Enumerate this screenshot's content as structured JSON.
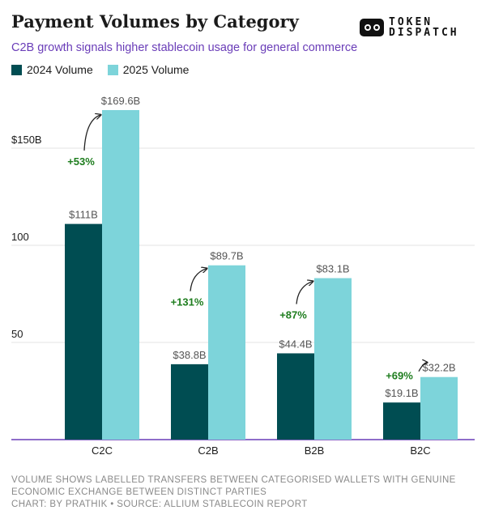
{
  "header": {
    "title": "Payment Volumes by Category",
    "subtitle": "C2B growth signals higher stablecoin usage for general commerce"
  },
  "brand": {
    "line1": "TOKEN",
    "line2": "DISPATCH"
  },
  "legend": [
    {
      "label": "2024 Volume",
      "color": "#004d52"
    },
    {
      "label": "2025 Volume",
      "color": "#7dd4da"
    }
  ],
  "chart_data": {
    "type": "bar",
    "categories": [
      "C2C",
      "C2B",
      "B2B",
      "B2C"
    ],
    "series": [
      {
        "name": "2024 Volume",
        "color": "#004d52",
        "values": [
          111,
          38.8,
          44.4,
          19.1
        ],
        "labels": [
          "$111B",
          "$38.8B",
          "$44.4B",
          "$19.1B"
        ]
      },
      {
        "name": "2025 Volume",
        "color": "#7dd4da",
        "values": [
          169.6,
          89.7,
          83.1,
          32.2
        ],
        "labels": [
          "$169.6B",
          "$89.7B",
          "$83.1B",
          "$32.2B"
        ]
      }
    ],
    "growth": [
      "+53%",
      "+131%",
      "+87%",
      "+69%"
    ],
    "growth_color": "#1e7d1e",
    "yticks": [
      50,
      100,
      150
    ],
    "ytick_labels": [
      "50",
      "100",
      "$150B"
    ],
    "ylim": [
      0,
      180
    ],
    "grid": true,
    "axis_color": "#6a3db8"
  },
  "footer": {
    "note": "Volume shows labelled transfers between categorised wallets with genuine economic exchange between distinct parties",
    "credit": "Chart: by Prathik • Source: Allium Stablecoin Report"
  }
}
